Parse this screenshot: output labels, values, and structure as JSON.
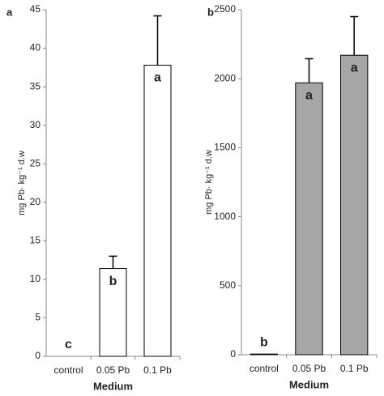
{
  "chart_data": [
    {
      "type": "bar",
      "panel_label": "a",
      "y_label": "mg Pb· kg⁻¹ d.w",
      "x_label": "Medium",
      "categories": [
        "control",
        "0.05 Pb",
        "0.1 Pb"
      ],
      "values": [
        0,
        11.4,
        37.8
      ],
      "errors": [
        null,
        1.6,
        6.4
      ],
      "annotations": [
        "c",
        "b",
        "a"
      ],
      "color": "#ffffff",
      "ylim": [
        0,
        45
      ],
      "yticks": [
        0,
        5,
        10,
        15,
        20,
        25,
        30,
        35,
        40,
        45
      ]
    },
    {
      "type": "bar",
      "panel_label": "b",
      "y_label": "mg Pb· kg⁻¹ d.w",
      "x_label": "Medium",
      "categories": [
        "control",
        "0.05 Pb",
        "0.1 Pb"
      ],
      "values": [
        5,
        1970,
        2170
      ],
      "errors": [
        null,
        175,
        280
      ],
      "annotations": [
        "b",
        "a",
        "a"
      ],
      "color": "#a6a6a6",
      "ylim": [
        0,
        2500
      ],
      "yticks": [
        0,
        500,
        1000,
        1500,
        2000,
        2500
      ]
    }
  ]
}
